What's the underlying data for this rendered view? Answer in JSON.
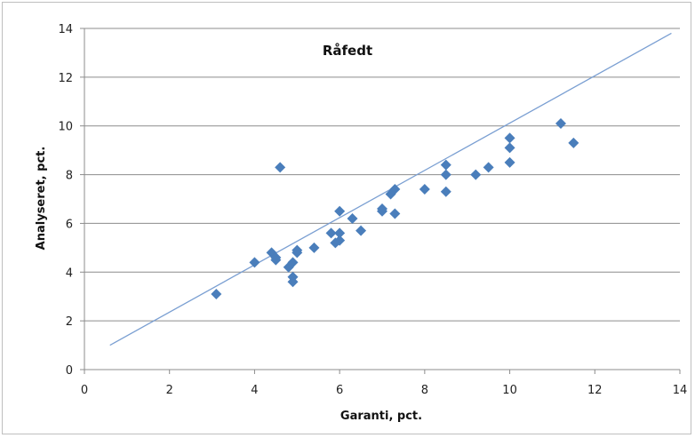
{
  "chart_data": {
    "type": "scatter",
    "title": "Råfedt",
    "xlabel": "Garanti, pct.",
    "ylabel": "Analyseret, pct.",
    "xlim": [
      0,
      14
    ],
    "ylim": [
      0,
      14
    ],
    "xticks": [
      "0",
      "2",
      "4",
      "6",
      "8",
      "10",
      "12",
      "14"
    ],
    "yticks": [
      "0",
      "2",
      "4",
      "6",
      "8",
      "10",
      "12",
      "14"
    ],
    "grid": "horizontal",
    "marker_color": "#4a7ebb",
    "line_color": "#7a9fd2",
    "series": [
      {
        "points": [
          [
            3.1,
            3.1
          ],
          [
            4.0,
            4.4
          ],
          [
            4.4,
            4.8
          ],
          [
            4.5,
            4.6
          ],
          [
            4.5,
            4.5
          ],
          [
            4.6,
            8.3
          ],
          [
            4.8,
            4.2
          ],
          [
            4.9,
            4.4
          ],
          [
            4.9,
            3.8
          ],
          [
            4.9,
            3.6
          ],
          [
            5.0,
            4.9
          ],
          [
            5.0,
            4.8
          ],
          [
            5.4,
            5.0
          ],
          [
            5.8,
            5.6
          ],
          [
            5.9,
            5.2
          ],
          [
            6.0,
            5.3
          ],
          [
            6.0,
            5.6
          ],
          [
            6.0,
            6.5
          ],
          [
            6.3,
            6.2
          ],
          [
            6.5,
            5.7
          ],
          [
            7.0,
            6.6
          ],
          [
            7.0,
            6.5
          ],
          [
            7.2,
            7.2
          ],
          [
            7.3,
            7.4
          ],
          [
            7.3,
            6.4
          ],
          [
            8.0,
            7.4
          ],
          [
            8.5,
            8.4
          ],
          [
            8.5,
            8.0
          ],
          [
            8.5,
            7.3
          ],
          [
            9.2,
            8.0
          ],
          [
            9.5,
            8.3
          ],
          [
            10.0,
            9.5
          ],
          [
            10.0,
            9.1
          ],
          [
            10.0,
            8.5
          ],
          [
            11.2,
            10.1
          ],
          [
            11.5,
            9.3
          ]
        ]
      }
    ],
    "reference_line": [
      [
        0.6,
        1.0
      ],
      [
        13.8,
        13.8
      ]
    ]
  }
}
